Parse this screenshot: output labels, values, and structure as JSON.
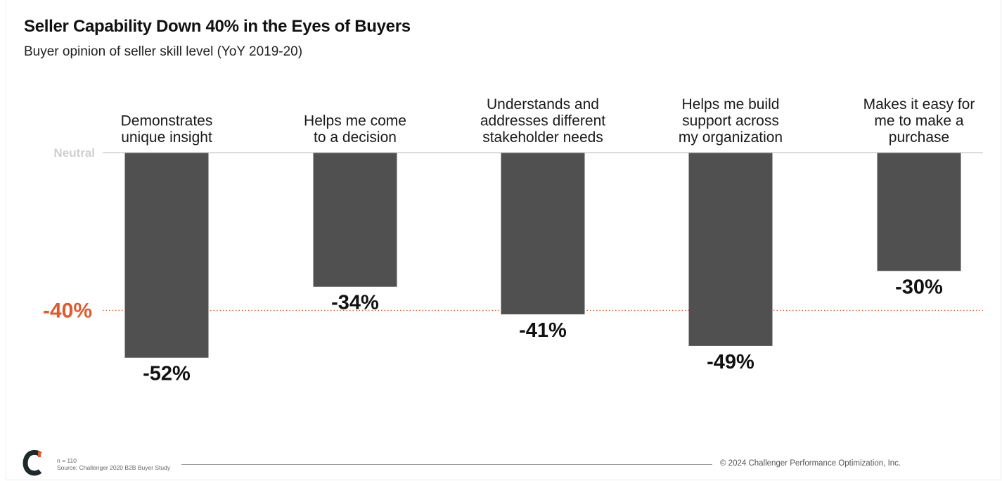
{
  "header": {
    "title": "Seller Capability Down 40% in the Eyes of Buyers",
    "subtitle": "Buyer opinion of seller skill level (YoY 2019-20)"
  },
  "chart_data": {
    "type": "bar",
    "title": "Seller Capability Down 40% in the Eyes of Buyers",
    "subtitle": "Buyer opinion of seller skill level (YoY 2019-20)",
    "categories": [
      [
        "Demonstrates",
        "unique insight"
      ],
      [
        "Helps me come",
        "to a decision"
      ],
      [
        "Understands and",
        "addresses different",
        "stakeholder needs"
      ],
      [
        "Helps me build",
        "support across",
        "my organization"
      ],
      [
        "Makes it easy for",
        "me to make a",
        "purchase"
      ]
    ],
    "values": [
      -52,
      -34,
      -41,
      -49,
      -30
    ],
    "value_labels": [
      "-52%",
      "-34%",
      "-41%",
      "-49%",
      "-30%"
    ],
    "baseline_label": "Neutral",
    "reference_line": {
      "value": -40,
      "label": "-40%",
      "color": "#e05a2b"
    },
    "bar_color": "#505050",
    "ylim": [
      -55,
      0
    ],
    "grid": false,
    "legend": "none",
    "xlabel": "",
    "ylabel": ""
  },
  "footer": {
    "sample_size": "n = 110",
    "source": "Source: Challenger 2020 B2B Buyer Study",
    "copyright": "© 2024 Challenger Performance Optimization, Inc.",
    "logo_letter": "C",
    "logo_color": "#1c2a2e",
    "logo_accent_color": "#e05a2b"
  }
}
